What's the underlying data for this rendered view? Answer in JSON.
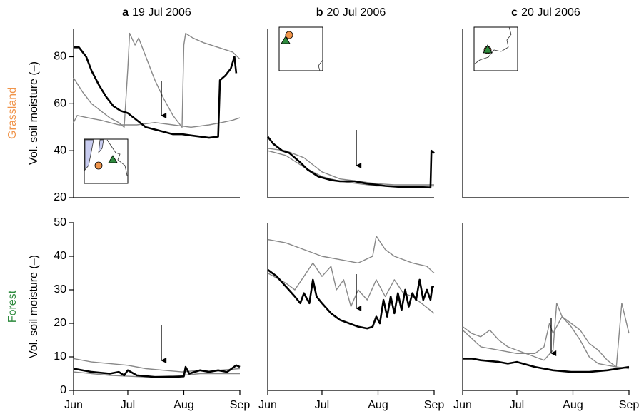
{
  "chart_data": [
    {
      "type": "line",
      "panel_label": "a",
      "title": "19 Jul 2006",
      "row_label": "Grassland",
      "row_label_color": "#f0944a",
      "ylabel": "Vol. soil moisture (–)",
      "xlim": [
        0,
        92
      ],
      "ylim": [
        20,
        92
      ],
      "yticks": [
        20,
        40,
        60,
        80
      ],
      "series": [
        {
          "color": "#888888",
          "x": [
            0,
            5,
            10,
            15,
            20,
            25,
            28,
            30,
            31,
            34,
            36,
            40,
            45,
            50,
            55,
            58,
            60,
            61,
            62,
            66,
            72,
            80,
            88,
            92
          ],
          "values": [
            71,
            65,
            60,
            57,
            54,
            52,
            50,
            75,
            90,
            85,
            88,
            80,
            70,
            62,
            55,
            52,
            50,
            85,
            90,
            88,
            86,
            84,
            82,
            79
          ]
        },
        {
          "color": "#888888",
          "x": [
            0,
            2,
            8,
            15,
            25,
            35,
            45,
            55,
            65,
            75,
            82,
            88,
            92
          ],
          "values": [
            52,
            55,
            54,
            53,
            51,
            51,
            52,
            51,
            50,
            51,
            52,
            53,
            54
          ]
        },
        {
          "color": "#000000",
          "x": [
            0,
            3,
            7,
            10,
            14,
            18,
            22,
            26,
            30,
            35,
            40,
            45,
            50,
            55,
            60,
            65,
            70,
            75,
            80,
            81,
            84,
            87,
            89,
            90
          ],
          "values": [
            84,
            84,
            80,
            74,
            68,
            63,
            59,
            57,
            56,
            53,
            50,
            49,
            48,
            47,
            47,
            46.5,
            46,
            45.5,
            46,
            70,
            72,
            75,
            80,
            73
          ]
        }
      ]
    },
    {
      "type": "line",
      "panel_label": "b",
      "title": "20 Jul 2006",
      "xlim": [
        0,
        92
      ],
      "ylim": [
        20,
        92
      ],
      "series": [
        {
          "color": "#888888",
          "x": [
            0,
            10,
            20,
            30,
            40,
            50,
            60,
            70,
            92
          ],
          "values": [
            41,
            40,
            37,
            31,
            28,
            27,
            26,
            25.5,
            25.5
          ]
        },
        {
          "color": "#888888",
          "x": [
            0,
            10,
            20,
            30,
            40,
            50,
            60,
            92
          ],
          "values": [
            40,
            38,
            33,
            29,
            27,
            26,
            25,
            25
          ]
        },
        {
          "color": "#000000",
          "x": [
            0,
            3,
            8,
            12,
            18,
            22,
            28,
            35,
            40,
            48,
            55,
            65,
            75,
            85,
            90,
            90.5,
            92
          ],
          "values": [
            46,
            43,
            40,
            39,
            35,
            32,
            29,
            27.5,
            27,
            27,
            26,
            25,
            24.5,
            24.5,
            24.3,
            40,
            39
          ]
        }
      ]
    },
    {
      "type": "line",
      "panel_label": "c",
      "title": "20 Jul 2006",
      "xlim": [
        0,
        92
      ],
      "ylim": [
        20,
        92
      ],
      "series": []
    },
    {
      "type": "line",
      "row_label": "Forest",
      "row_label_color": "#2e8b3e",
      "ylabel": "Vol. soil moisture (–)",
      "xlim": [
        0,
        92
      ],
      "ylim": [
        0,
        50
      ],
      "yticks": [
        0,
        10,
        20,
        30,
        40,
        50
      ],
      "xticks": [
        {
          "value": 0,
          "label": "Jun"
        },
        {
          "value": 30,
          "label": "Jul"
        },
        {
          "value": 61,
          "label": "Aug"
        },
        {
          "value": 92,
          "label": "Sep"
        }
      ],
      "series": [
        {
          "color": "#888888",
          "x": [
            0,
            10,
            20,
            30,
            40,
            50,
            60,
            70,
            80,
            92
          ],
          "values": [
            9.5,
            8.5,
            8,
            7.5,
            6.5,
            6,
            5.5,
            6,
            6,
            6.5
          ]
        },
        {
          "color": "#888888",
          "x": [
            0,
            20,
            40,
            60,
            70,
            92
          ],
          "values": [
            5.5,
            4.5,
            4,
            4.5,
            5,
            5
          ]
        },
        {
          "color": "#000000",
          "x": [
            0,
            10,
            20,
            25,
            28,
            30,
            35,
            45,
            55,
            61,
            62,
            64,
            70,
            75,
            80,
            85,
            90,
            92
          ],
          "values": [
            6.5,
            5.5,
            5,
            5.5,
            4.5,
            6,
            4.5,
            4,
            4,
            4.2,
            7,
            5,
            6,
            5.5,
            6,
            5.5,
            7.5,
            7
          ]
        }
      ]
    },
    {
      "type": "line",
      "xlim": [
        0,
        92
      ],
      "ylim": [
        0,
        50
      ],
      "xticks": [
        {
          "value": 0,
          "label": "Jun"
        },
        {
          "value": 30,
          "label": "Jul"
        },
        {
          "value": 61,
          "label": "Aug"
        },
        {
          "value": 92,
          "label": "Sep"
        }
      ],
      "series": [
        {
          "color": "#888888",
          "x": [
            0,
            10,
            20,
            30,
            40,
            50,
            58,
            60,
            65,
            70,
            80,
            88,
            92
          ],
          "values": [
            45,
            44,
            42,
            40,
            39,
            38,
            40,
            46,
            42,
            40,
            38,
            37,
            35
          ]
        },
        {
          "color": "#888888",
          "x": [
            0,
            10,
            15,
            20,
            25,
            30,
            35,
            38,
            42,
            46,
            50,
            55,
            60,
            65,
            70,
            75,
            80,
            85,
            92
          ],
          "values": [
            35,
            32,
            30,
            34,
            38,
            34,
            37,
            30,
            33,
            25,
            30,
            27,
            33,
            28,
            33,
            29,
            28,
            26,
            23
          ]
        },
        {
          "color": "#000000",
          "x": [
            0,
            5,
            10,
            15,
            18,
            20,
            23,
            25,
            27,
            30,
            35,
            40,
            45,
            50,
            55,
            58,
            60,
            62,
            64,
            66,
            68,
            70,
            72,
            74,
            76,
            78,
            80,
            82,
            84,
            86,
            88,
            90,
            91,
            92
          ],
          "values": [
            36,
            34,
            31,
            28,
            26,
            29,
            26,
            33,
            28,
            26,
            23,
            21,
            20,
            19,
            18.5,
            19,
            22,
            20,
            27,
            22,
            28,
            23,
            29,
            24,
            30,
            25,
            29,
            27,
            33,
            27,
            30,
            27,
            31,
            31
          ]
        }
      ]
    },
    {
      "type": "line",
      "xlim": [
        0,
        92
      ],
      "ylim": [
        0,
        50
      ],
      "xticks": [
        {
          "value": 0,
          "label": "Jun"
        },
        {
          "value": 30,
          "label": "Jul"
        },
        {
          "value": 61,
          "label": "Aug"
        },
        {
          "value": 92,
          "label": "Sep"
        }
      ],
      "series": [
        {
          "color": "#888888",
          "x": [
            0,
            5,
            10,
            15,
            20,
            25,
            30,
            40,
            45,
            50,
            52,
            55,
            60,
            65,
            70,
            75,
            80,
            85,
            88,
            92
          ],
          "values": [
            19,
            17,
            16,
            18,
            15,
            13,
            12,
            10,
            9,
            12,
            26,
            22,
            19,
            15,
            10,
            8,
            7.5,
            7,
            26,
            17
          ]
        },
        {
          "color": "#888888",
          "x": [
            0,
            10,
            20,
            30,
            40,
            45,
            48,
            50,
            55,
            60,
            65,
            70,
            75,
            80,
            85,
            92
          ],
          "values": [
            18,
            13,
            12,
            11,
            11,
            13,
            20,
            17,
            22,
            20,
            18,
            14,
            12,
            9,
            7,
            6.5
          ]
        },
        {
          "color": "#000000",
          "x": [
            0,
            5,
            10,
            20,
            25,
            30,
            40,
            50,
            60,
            70,
            80,
            92
          ],
          "values": [
            9.5,
            9.5,
            9,
            8.5,
            8,
            8.5,
            7,
            6,
            5.5,
            5.5,
            6,
            7
          ]
        }
      ]
    }
  ]
}
